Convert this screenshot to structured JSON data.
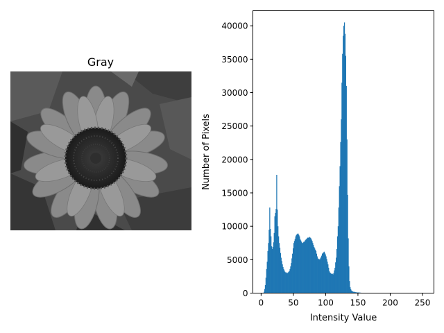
{
  "image_panel": {
    "title": "Gray",
    "image_description": "grayscale sunflower"
  },
  "chart_data": {
    "type": "bar",
    "subtype": "histogram",
    "title": "",
    "xlabel": "Intensity Value",
    "ylabel": "Number of Pixels",
    "xlim": [
      -12.75,
      267.75
    ],
    "ylim": [
      0,
      42250
    ],
    "xticks": [
      0,
      50,
      100,
      150,
      200,
      250
    ],
    "yticks": [
      0,
      5000,
      10000,
      15000,
      20000,
      25000,
      30000,
      35000,
      40000
    ],
    "grid": false,
    "bar_color": "#1f77b4",
    "bins": 256,
    "values": [
      0,
      0,
      0,
      0,
      200,
      600,
      1200,
      2300,
      3600,
      4700,
      6300,
      7500,
      9500,
      12800,
      9600,
      8500,
      7000,
      6600,
      6900,
      7600,
      9000,
      11500,
      12000,
      12600,
      17700,
      12500,
      10000,
      8500,
      7500,
      6800,
      6000,
      5300,
      4800,
      4300,
      3900,
      3600,
      3400,
      3200,
      3100,
      3100,
      3000,
      3000,
      3100,
      3200,
      3300,
      3600,
      4000,
      4500,
      5200,
      5900,
      6700,
      7500,
      7800,
      8100,
      8500,
      8700,
      8800,
      8900,
      8900,
      8700,
      8500,
      8100,
      7900,
      7700,
      7500,
      7500,
      7600,
      7700,
      7700,
      7900,
      8000,
      8100,
      8200,
      8300,
      8300,
      8300,
      8400,
      8300,
      8200,
      8000,
      7800,
      7500,
      7200,
      6900,
      6700,
      6500,
      6300,
      5900,
      5500,
      5200,
      5100,
      5100,
      5000,
      5200,
      5400,
      5600,
      5900,
      6000,
      6100,
      6200,
      6000,
      5800,
      5500,
      5100,
      4700,
      4300,
      3800,
      3300,
      3100,
      3000,
      2900,
      2900,
      2900,
      2800,
      3000,
      3400,
      3800,
      4600,
      5300,
      6600,
      8500,
      10000,
      12800,
      16000,
      19000,
      22600,
      26000,
      31500,
      35800,
      38500,
      40000,
      40500,
      38800,
      35500,
      31000,
      23000,
      14700,
      8200,
      4000,
      1800,
      900,
      600,
      400,
      300,
      250,
      200,
      200,
      180,
      150,
      130,
      120,
      100,
      100,
      100,
      90,
      80,
      70,
      60,
      50,
      50,
      50,
      40,
      40,
      30,
      30,
      30,
      20,
      20,
      20,
      20,
      20,
      10,
      10,
      10,
      10,
      10,
      10,
      5,
      5,
      5,
      5,
      5,
      5,
      5,
      5,
      5,
      5,
      5,
      5,
      5,
      5,
      5,
      5,
      5,
      5,
      5,
      5,
      5,
      5,
      5,
      5,
      5,
      5,
      5,
      5,
      5,
      5,
      5,
      5,
      5,
      5,
      5,
      5,
      5,
      5,
      5,
      5,
      5,
      5,
      5,
      5,
      5,
      5,
      5,
      5,
      5,
      5,
      5,
      5,
      5,
      5,
      5,
      5,
      5,
      5,
      5,
      5,
      5,
      5,
      5,
      5,
      5,
      5,
      5,
      5,
      5,
      5,
      5,
      5,
      5,
      5,
      5,
      5,
      5,
      5,
      5,
      5,
      5,
      5,
      5
    ]
  }
}
